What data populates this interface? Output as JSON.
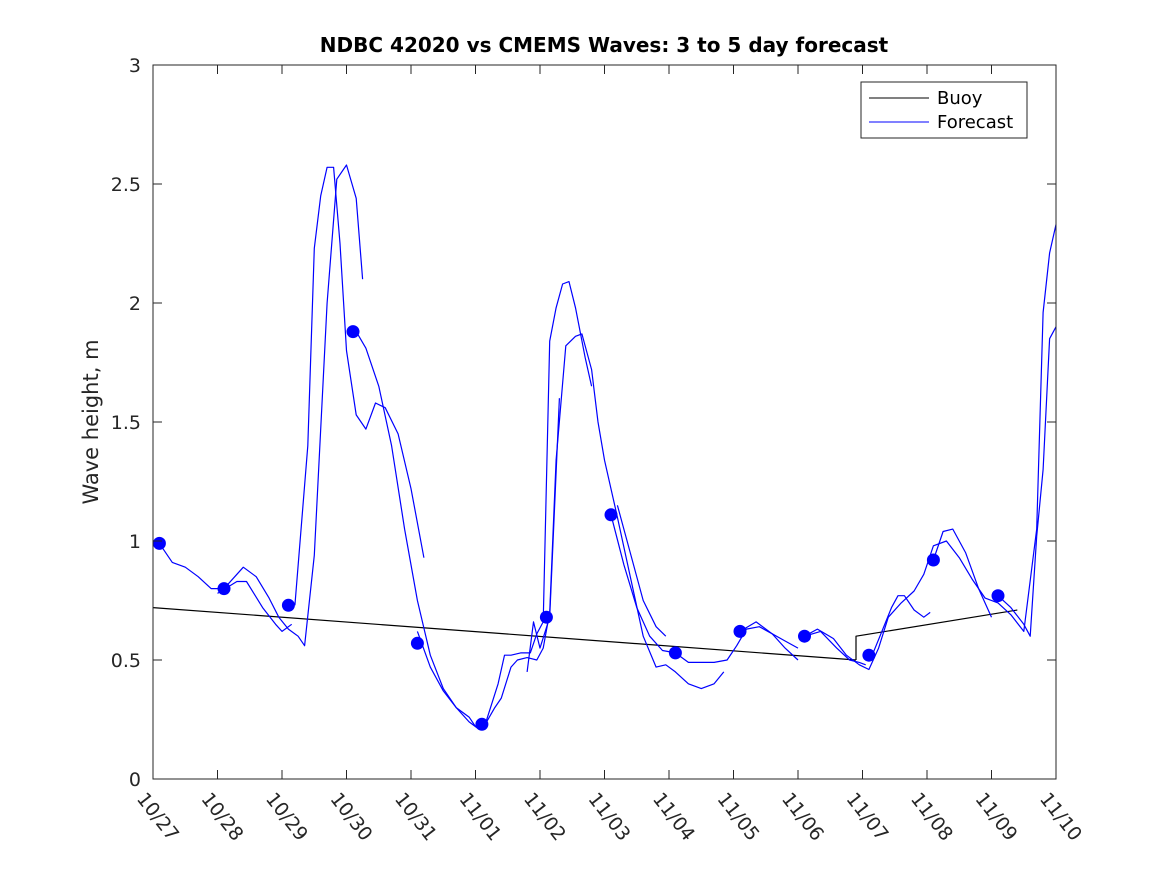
{
  "chart_data": {
    "type": "line",
    "title": "NDBC 42020 vs CMEMS Waves: 3 to 5 day forecast",
    "xlabel": "",
    "ylabel": "Wave height, m",
    "xlim": [
      0,
      14
    ],
    "ylim": [
      0,
      3
    ],
    "x_tick_values": [
      0,
      1,
      2,
      3,
      4,
      5,
      6,
      7,
      8,
      9,
      10,
      11,
      12,
      13,
      14
    ],
    "x_tick_labels": [
      "10/27",
      "10/28",
      "10/29",
      "10/30",
      "10/31",
      "11/01",
      "11/02",
      "11/03",
      "11/04",
      "11/05",
      "11/06",
      "11/07",
      "11/08",
      "11/09",
      "11/10"
    ],
    "y_tick_values": [
      0,
      0.5,
      1,
      1.5,
      2,
      2.5,
      3
    ],
    "y_tick_labels": [
      "0",
      "0.5",
      "1",
      "1.5",
      "2",
      "2.5",
      "3"
    ],
    "grid": false,
    "legend": {
      "position": "top-right",
      "entries": [
        "Buoy",
        "Forecast"
      ]
    },
    "colors": {
      "buoy": "#000000",
      "forecast": "#0000ff",
      "markers": "#0000ff"
    },
    "series": [
      {
        "name": "Buoy",
        "color": "#000000",
        "segments": [
          [
            [
              0,
              0.72
            ],
            [
              10.9,
              0.5
            ]
          ],
          [
            [
              10.9,
              0.5
            ],
            [
              10.9,
              0.6
            ],
            [
              13.4,
              0.71
            ]
          ]
        ]
      },
      {
        "name": "Forecast",
        "color": "#0000ff",
        "segments": [
          [
            [
              0.1,
              0.99
            ],
            [
              0.3,
              0.91
            ],
            [
              0.5,
              0.89
            ],
            [
              0.7,
              0.85
            ],
            [
              0.9,
              0.8
            ],
            [
              1.1,
              0.8
            ],
            [
              1.3,
              0.86
            ],
            [
              1.4,
              0.89
            ],
            [
              1.6,
              0.85
            ],
            [
              1.8,
              0.76
            ],
            [
              1.95,
              0.68
            ],
            [
              2.1,
              0.63
            ],
            [
              2.25,
              0.6
            ],
            [
              2.35,
              0.56
            ],
            [
              2.5,
              0.94
            ],
            [
              2.7,
              2.0
            ],
            [
              2.85,
              2.52
            ],
            [
              3.0,
              2.58
            ],
            [
              3.15,
              2.44
            ],
            [
              3.25,
              2.1
            ]
          ],
          [
            [
              1.0,
              0.78
            ],
            [
              1.3,
              0.83
            ],
            [
              1.45,
              0.83
            ],
            [
              1.7,
              0.72
            ],
            [
              1.9,
              0.65
            ],
            [
              2.0,
              0.62
            ],
            [
              2.15,
              0.65
            ]
          ],
          [
            [
              2.2,
              0.73
            ],
            [
              2.4,
              1.4
            ],
            [
              2.5,
              2.23
            ],
            [
              2.6,
              2.45
            ],
            [
              2.7,
              2.57
            ],
            [
              2.8,
              2.57
            ],
            [
              2.9,
              2.25
            ],
            [
              3.0,
              1.8
            ],
            [
              3.15,
              1.53
            ],
            [
              3.3,
              1.47
            ],
            [
              3.45,
              1.58
            ],
            [
              3.6,
              1.56
            ],
            [
              3.8,
              1.45
            ],
            [
              4.0,
              1.22
            ],
            [
              4.2,
              0.93
            ]
          ],
          [
            [
              3.15,
              1.88
            ],
            [
              3.3,
              1.81
            ],
            [
              3.5,
              1.65
            ],
            [
              3.7,
              1.4
            ],
            [
              3.9,
              1.05
            ],
            [
              4.1,
              0.75
            ],
            [
              4.3,
              0.52
            ],
            [
              4.5,
              0.38
            ],
            [
              4.7,
              0.3
            ],
            [
              4.9,
              0.24
            ],
            [
              5.05,
              0.21
            ]
          ],
          [
            [
              4.1,
              0.62
            ],
            [
              4.3,
              0.47
            ],
            [
              4.5,
              0.37
            ],
            [
              4.7,
              0.3
            ],
            [
              4.9,
              0.26
            ],
            [
              5.0,
              0.22
            ],
            [
              5.15,
              0.23
            ],
            [
              5.3,
              0.3
            ],
            [
              5.4,
              0.34
            ],
            [
              5.55,
              0.47
            ],
            [
              5.65,
              0.5
            ],
            [
              5.8,
              0.51
            ],
            [
              5.95,
              0.5
            ],
            [
              6.05,
              0.55
            ],
            [
              6.15,
              0.7
            ],
            [
              6.25,
              1.34
            ],
            [
              6.4,
              1.82
            ],
            [
              6.55,
              1.86
            ],
            [
              6.65,
              1.87
            ],
            [
              6.8,
              1.72
            ],
            [
              6.9,
              1.5
            ],
            [
              7.0,
              1.34
            ],
            [
              7.2,
              1.1
            ],
            [
              7.4,
              0.85
            ],
            [
              7.6,
              0.6
            ],
            [
              7.8,
              0.47
            ],
            [
              7.95,
              0.48
            ],
            [
              8.1,
              0.45
            ],
            [
              8.3,
              0.4
            ],
            [
              8.5,
              0.38
            ],
            [
              8.7,
              0.4
            ],
            [
              8.85,
              0.45
            ]
          ],
          [
            [
              5.15,
              0.23
            ],
            [
              5.35,
              0.4
            ],
            [
              5.45,
              0.52
            ],
            [
              5.55,
              0.52
            ],
            [
              5.7,
              0.53
            ],
            [
              5.85,
              0.53
            ],
            [
              5.95,
              0.61
            ],
            [
              6.05,
              0.66
            ],
            [
              6.15,
              1.84
            ],
            [
              6.25,
              1.98
            ],
            [
              6.35,
              2.08
            ],
            [
              6.45,
              2.09
            ],
            [
              6.55,
              1.98
            ],
            [
              6.7,
              1.77
            ],
            [
              6.8,
              1.65
            ]
          ],
          [
            [
              5.8,
              0.45
            ],
            [
              5.9,
              0.66
            ],
            [
              6.0,
              0.55
            ],
            [
              6.15,
              0.68
            ],
            [
              6.3,
              1.6
            ]
          ],
          [
            [
              7.1,
              1.11
            ],
            [
              7.3,
              0.9
            ],
            [
              7.5,
              0.72
            ],
            [
              7.7,
              0.6
            ],
            [
              7.9,
              0.54
            ],
            [
              8.1,
              0.53
            ],
            [
              8.3,
              0.49
            ],
            [
              8.5,
              0.49
            ],
            [
              8.7,
              0.49
            ],
            [
              8.9,
              0.5
            ],
            [
              9.05,
              0.56
            ],
            [
              9.2,
              0.63
            ],
            [
              9.4,
              0.64
            ],
            [
              9.6,
              0.61
            ],
            [
              9.8,
              0.58
            ],
            [
              10.0,
              0.55
            ]
          ],
          [
            [
              7.2,
              1.15
            ],
            [
              7.4,
              0.95
            ],
            [
              7.6,
              0.75
            ],
            [
              7.8,
              0.64
            ],
            [
              7.95,
              0.6
            ]
          ],
          [
            [
              9.1,
              0.62
            ],
            [
              9.35,
              0.66
            ],
            [
              9.6,
              0.61
            ],
            [
              9.8,
              0.55
            ],
            [
              10.0,
              0.5
            ]
          ],
          [
            [
              10.1,
              0.6
            ],
            [
              10.35,
              0.62
            ],
            [
              10.6,
              0.55
            ],
            [
              10.8,
              0.5
            ],
            [
              10.95,
              0.49
            ],
            [
              11.05,
              0.48
            ]
          ],
          [
            [
              10.1,
              0.6
            ],
            [
              10.3,
              0.63
            ],
            [
              10.55,
              0.59
            ],
            [
              10.75,
              0.52
            ],
            [
              10.95,
              0.48
            ],
            [
              11.1,
              0.46
            ],
            [
              11.25,
              0.55
            ],
            [
              11.4,
              0.68
            ],
            [
              11.6,
              0.74
            ],
            [
              11.8,
              0.79
            ],
            [
              11.95,
              0.86
            ],
            [
              12.1,
              0.98
            ],
            [
              12.3,
              1.0
            ],
            [
              12.5,
              0.93
            ],
            [
              12.7,
              0.84
            ],
            [
              12.9,
              0.76
            ],
            [
              13.1,
              0.74
            ],
            [
              13.3,
              0.69
            ],
            [
              13.5,
              0.62
            ],
            [
              13.7,
              1.05
            ],
            [
              13.8,
              1.96
            ],
            [
              13.9,
              2.21
            ],
            [
              14.0,
              2.33
            ]
          ],
          [
            [
              11.15,
              0.52
            ],
            [
              11.3,
              0.62
            ],
            [
              11.45,
              0.72
            ],
            [
              11.55,
              0.77
            ],
            [
              11.65,
              0.77
            ],
            [
              11.8,
              0.71
            ],
            [
              11.95,
              0.68
            ],
            [
              12.05,
              0.7
            ]
          ],
          [
            [
              12.1,
              0.92
            ],
            [
              12.25,
              1.04
            ],
            [
              12.4,
              1.05
            ],
            [
              12.6,
              0.95
            ],
            [
              12.8,
              0.8
            ],
            [
              13.0,
              0.68
            ]
          ],
          [
            [
              13.1,
              0.77
            ],
            [
              13.3,
              0.72
            ],
            [
              13.5,
              0.65
            ],
            [
              13.6,
              0.6
            ],
            [
              13.7,
              1.02
            ],
            [
              13.8,
              1.3
            ],
            [
              13.9,
              1.85
            ],
            [
              14.0,
              1.9
            ]
          ]
        ]
      }
    ],
    "markers": [
      [
        0.1,
        0.99
      ],
      [
        1.1,
        0.8
      ],
      [
        2.1,
        0.73
      ],
      [
        3.1,
        1.88
      ],
      [
        4.1,
        0.57
      ],
      [
        5.1,
        0.23
      ],
      [
        6.1,
        0.68
      ],
      [
        7.1,
        1.11
      ],
      [
        8.1,
        0.53
      ],
      [
        9.1,
        0.62
      ],
      [
        10.1,
        0.6
      ],
      [
        11.1,
        0.52
      ],
      [
        12.1,
        0.92
      ],
      [
        13.1,
        0.77
      ]
    ]
  }
}
